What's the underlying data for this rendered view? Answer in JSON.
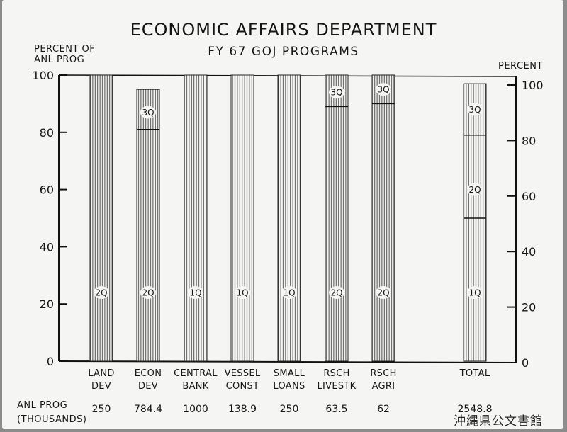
{
  "chart_data": {
    "type": "bar",
    "title": "ECONOMIC AFFAIRS DEPARTMENT",
    "subtitle": "FY 67 GOJ PROGRAMS",
    "ylabel_left": "PERCENT OF\nANL PROG",
    "ylabel_right": "PERCENT",
    "ylim": [
      0,
      100
    ],
    "yticks": [
      "0",
      "20",
      "40",
      "60",
      "80",
      "100"
    ],
    "grid": false,
    "categories": [
      {
        "line1": "LAND",
        "line2": "DEV",
        "value": 100,
        "quarter_lines": [],
        "labels": [
          {
            "text": "2Q",
            "at": 24
          }
        ],
        "anl_prog": "250"
      },
      {
        "line1": "ECON",
        "line2": "DEV",
        "value": 95,
        "quarter_lines": [
          81
        ],
        "labels": [
          {
            "text": "3Q",
            "at": 87
          },
          {
            "text": "2Q",
            "at": 24
          }
        ],
        "anl_prog": "784.4"
      },
      {
        "line1": "CENTRAL",
        "line2": "BANK",
        "value": 100,
        "quarter_lines": [],
        "labels": [
          {
            "text": "1Q",
            "at": 24
          }
        ],
        "anl_prog": "1000"
      },
      {
        "line1": "VESSEL",
        "line2": "CONST",
        "value": 100,
        "quarter_lines": [],
        "labels": [
          {
            "text": "1Q",
            "at": 24
          }
        ],
        "anl_prog": "138.9"
      },
      {
        "line1": "SMALL",
        "line2": "LOANS",
        "value": 100,
        "quarter_lines": [],
        "labels": [
          {
            "text": "1Q",
            "at": 24
          }
        ],
        "anl_prog": "250"
      },
      {
        "line1": "RSCH",
        "line2": "LIVESTK",
        "value": 100,
        "quarter_lines": [
          89
        ],
        "labels": [
          {
            "text": "3Q",
            "at": 94
          },
          {
            "text": "2Q",
            "at": 24
          }
        ],
        "anl_prog": "63.5"
      },
      {
        "line1": "RSCH",
        "line2": "AGRI",
        "value": 100,
        "quarter_lines": [
          90
        ],
        "labels": [
          {
            "text": "3Q",
            "at": 95
          },
          {
            "text": "2Q",
            "at": 24
          }
        ],
        "anl_prog": "62"
      },
      {
        "line1": "TOTAL",
        "line2": "",
        "value": 97,
        "quarter_lines": [
          79,
          50
        ],
        "labels": [
          {
            "text": "3Q",
            "at": 88
          },
          {
            "text": "2Q",
            "at": 60
          },
          {
            "text": "1Q",
            "at": 24
          }
        ],
        "anl_prog": "2548.8"
      }
    ],
    "row_label": "ANL PROG\n(THOUSANDS)"
  },
  "stamp": "沖縄県公文書館"
}
